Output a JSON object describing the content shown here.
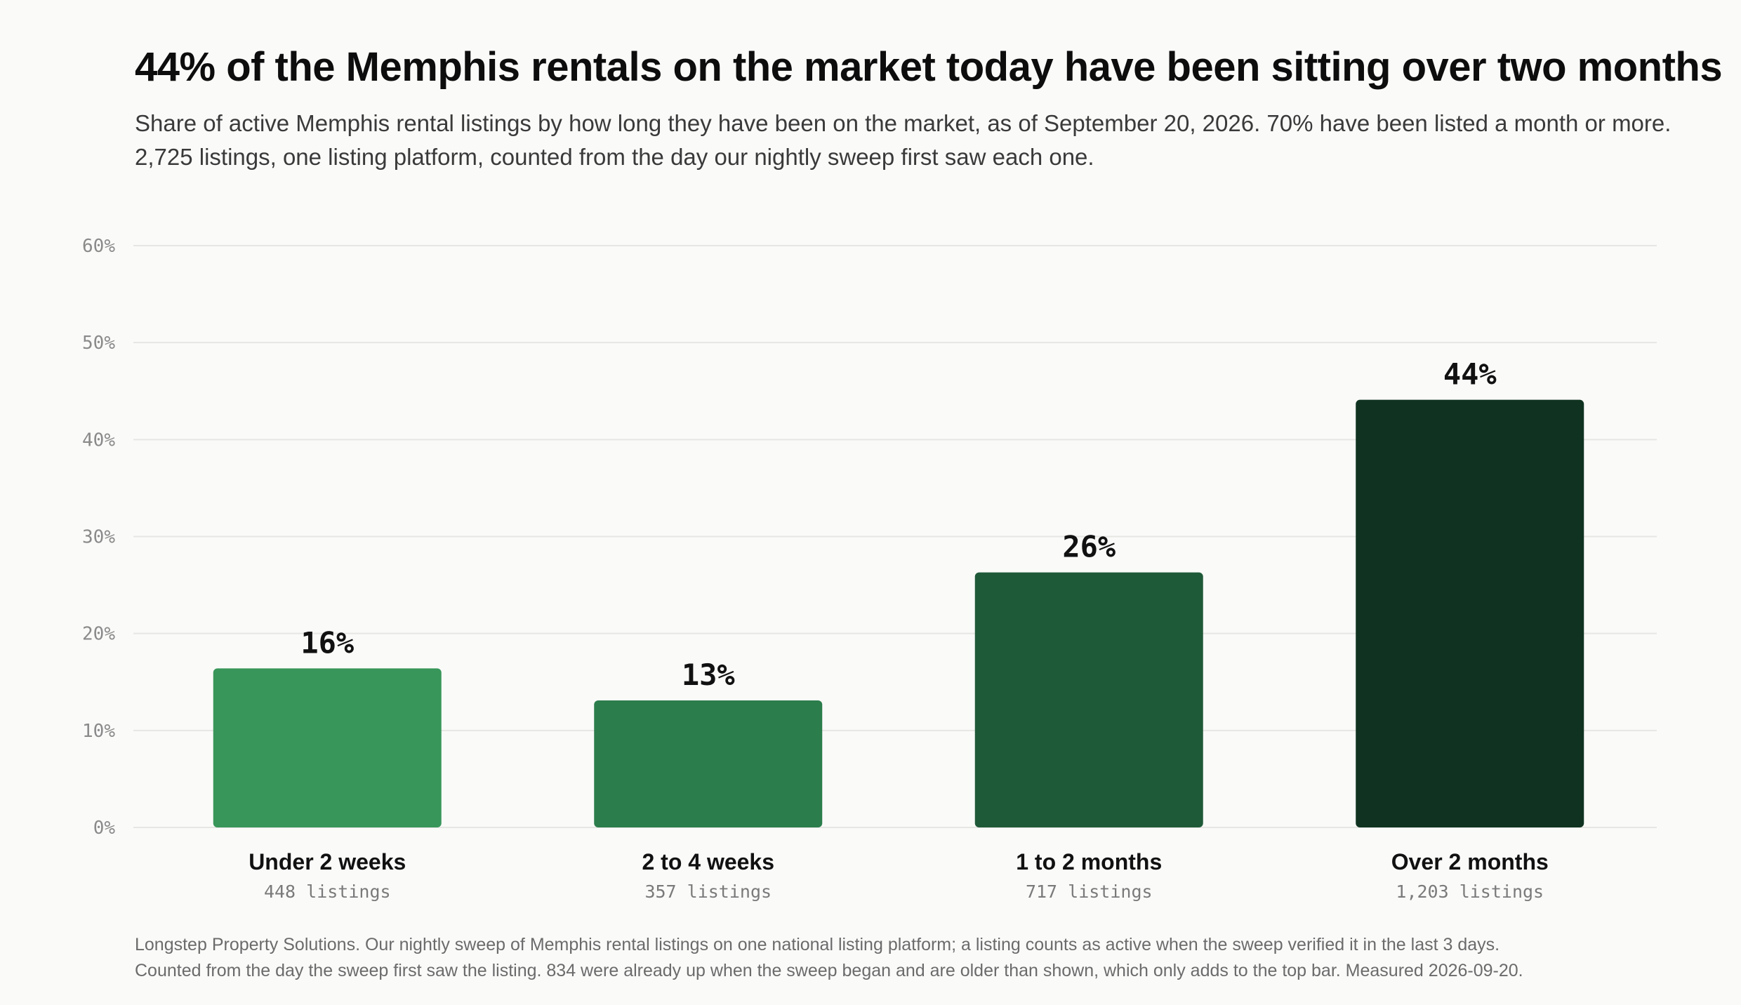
{
  "header": {
    "title": "44% of the Memphis rentals on the market today have been sitting over two months",
    "subtitle_line1": "Share of active Memphis rental listings by how long they have been on the market, as of September 20, 2026. 70% have been listed a month or more.",
    "subtitle_line2": "2,725 listings, one listing platform, counted from the day our nightly sweep first saw each one."
  },
  "footnote": {
    "line1": "Longstep Property Solutions. Our nightly sweep of Memphis rental listings on one national listing platform; a listing counts as active when the sweep verified it in the last 3 days.",
    "line2": "Counted from the day the sweep first saw the listing. 834 were already up when the sweep began and are older than shown, which only adds to the top bar. Measured 2026-09-20."
  },
  "chart_data": {
    "type": "bar",
    "categories": [
      "Under 2 weeks",
      "2 to 4 weeks",
      "1 to 2 months",
      "Over 2 months"
    ],
    "values": [
      16.4,
      13.1,
      26.3,
      44.1
    ],
    "data_labels": [
      "16%",
      "13%",
      "26%",
      "44%"
    ],
    "sublabels": [
      "448 listings",
      "357 listings",
      "717 listings",
      "1,203 listings"
    ],
    "bar_colors": [
      "#38965a",
      "#2c7d4c",
      "#1f5a38",
      "#0f3320"
    ],
    "yticks": [
      0,
      10,
      20,
      30,
      40,
      50,
      60
    ],
    "ytick_labels": [
      "0%",
      "10%",
      "20%",
      "30%",
      "40%",
      "50%",
      "60%"
    ],
    "ylim": [
      0,
      60
    ],
    "grid": true,
    "xlabel": "",
    "ylabel": ""
  }
}
